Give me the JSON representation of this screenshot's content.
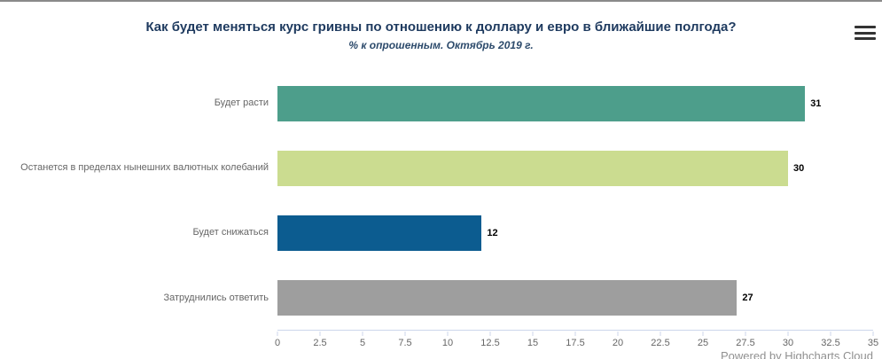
{
  "header": {
    "title": "Как будет меняться курс гривны по отношению к доллару и евро в ближайшие полгода?",
    "subtitle": "% к опрошенным. Октябрь 2019 г."
  },
  "menu": {
    "icon": "hamburger-icon"
  },
  "credits": {
    "label": "Powered by Highcharts Cloud"
  },
  "chart_data": {
    "type": "bar",
    "orientation": "horizontal",
    "title": "Как будет меняться курс гривны по отношению к доллару и евро в ближайшие полгода?",
    "subtitle": "% к опрошенным. Октябрь 2019 г.",
    "categories": [
      "Будет расти",
      "Останется в пределах нынешних валютных колебаний",
      "Будет снижаться",
      "Затруднились ответить"
    ],
    "values": [
      31,
      30,
      12,
      27
    ],
    "bar_colors": [
      "#4d9e8b",
      "#cbdc90",
      "#0c5c90",
      "#9e9e9e"
    ],
    "data_labels": [
      31,
      30,
      12,
      27
    ],
    "xlim": [
      0,
      35
    ],
    "x_ticks": [
      0,
      2.5,
      5,
      7.5,
      10,
      12.5,
      15,
      17.5,
      20,
      22.5,
      25,
      27.5,
      30,
      32.5,
      35
    ],
    "xlabel": "",
    "ylabel": "",
    "grid": false,
    "legend": false
  },
  "colors": {
    "title": "#1e3a5f",
    "category_label": "#666666",
    "value_label": "#000000",
    "tick_label": "#666666",
    "axis_line": "#ccd6eb"
  }
}
